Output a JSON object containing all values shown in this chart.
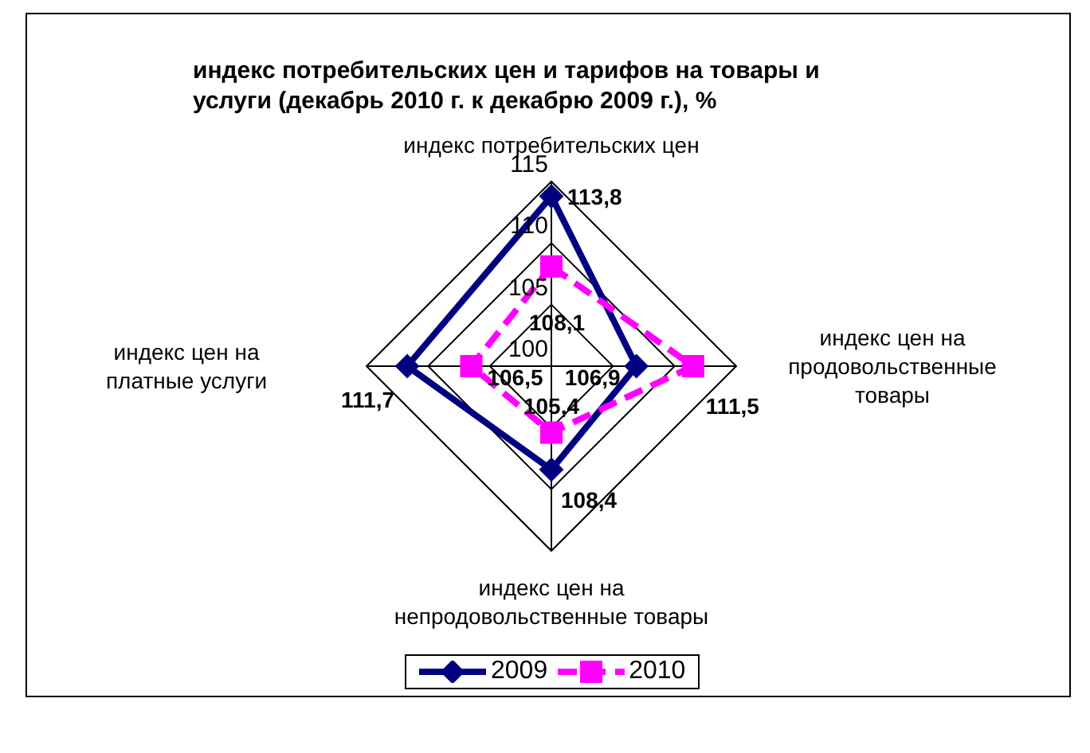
{
  "chart_data": {
    "type": "radar",
    "title": "индекс потребительских цен и тарифов на товары и услуги (декабрь 2010 г. к декабрю 2009 г.), %",
    "categories": [
      "индекс потребительских цен",
      "индекс цен на продовольственные товары",
      "индекс цен на непродовольственные товары",
      "индекс цен на платные услуги"
    ],
    "series": [
      {
        "name": "2009",
        "color": "#000080",
        "values": [
          113.8,
          106.9,
          108.4,
          111.7
        ],
        "value_labels": [
          "113,8",
          "106,9",
          "108,4",
          "111,7"
        ],
        "marker": "diamond",
        "line_style": "solid"
      },
      {
        "name": "2010",
        "color": "#ff00ff",
        "values": [
          108.1,
          111.5,
          105.4,
          106.5
        ],
        "value_labels": [
          "108,1",
          "111,5",
          "105,4",
          "106,5"
        ],
        "marker": "square",
        "line_style": "dashed"
      }
    ],
    "ylim": [
      100,
      115
    ],
    "yticks": [
      100,
      105,
      110,
      115
    ],
    "legend": "bottom",
    "grid": true
  }
}
